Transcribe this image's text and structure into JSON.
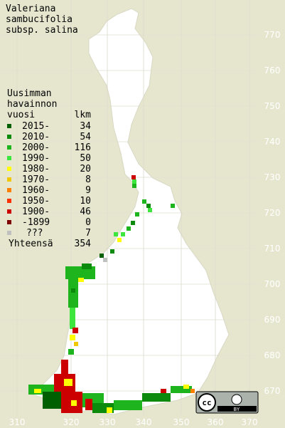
{
  "title": [
    "Valeriana",
    "sambucifolia",
    "subsp. salina"
  ],
  "legend": {
    "header": [
      "Uusimman",
      "havainnon"
    ],
    "col_year": "vuosi",
    "col_count": "lkm",
    "rows": [
      {
        "label": "2015-",
        "count": 34,
        "color": "#005f00"
      },
      {
        "label": "2010-",
        "count": 54,
        "color": "#0b8a0b"
      },
      {
        "label": "2000-",
        "count": 116,
        "color": "#1eb41e"
      },
      {
        "label": "1990-",
        "count": 50,
        "color": "#3ce63c"
      },
      {
        "label": "1980-",
        "count": 20,
        "color": "#ffff00"
      },
      {
        "label": "1970-",
        "count": 8,
        "color": "#f0c800"
      },
      {
        "label": "1960-",
        "count": 9,
        "color": "#ff8000"
      },
      {
        "label": "1950-",
        "count": 10,
        "color": "#ff3000"
      },
      {
        "label": "1900-",
        "count": 46,
        "color": "#cc0000"
      },
      {
        "label": "-1899",
        "count": 0,
        "color": "#800000"
      },
      {
        "label": "???",
        "count": 7,
        "color": "#c0c0c0"
      }
    ],
    "total_label": "Yhteensä",
    "total": 354
  },
  "grid": {
    "x_labels": [
      "310",
      "320",
      "330",
      "340",
      "350",
      "360",
      "370"
    ],
    "y_labels": [
      "770",
      "760",
      "750",
      "740",
      "730",
      "720",
      "710",
      "700",
      "690",
      "680",
      "670"
    ]
  },
  "license": [
    "cc",
    "BY"
  ]
}
